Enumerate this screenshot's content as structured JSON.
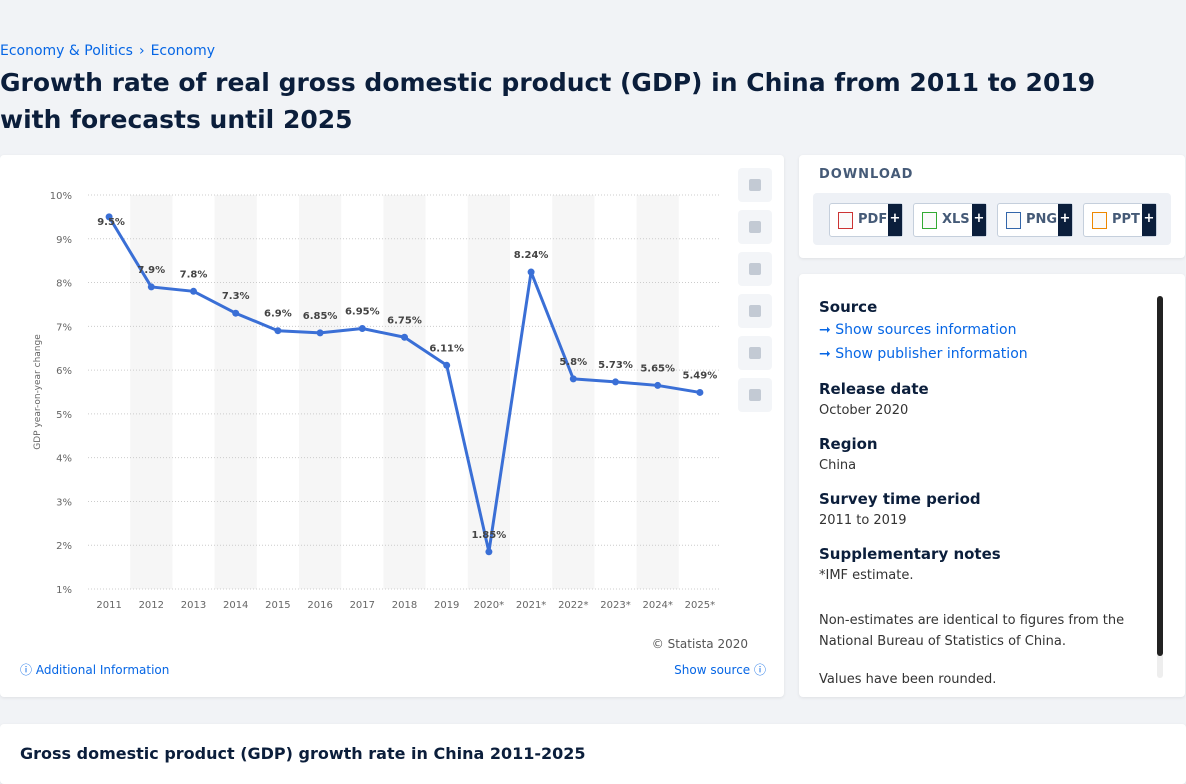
{
  "breadcrumbs": [
    "Economy & Politics",
    "Economy"
  ],
  "breadcrumbs_separator": "›",
  "page_title": "Growth rate of real gross domestic product (GDP) in China from 2011 to 2019 with forecasts until 2025",
  "chart_data": {
    "type": "line",
    "y_label": "GDP year-on-year change",
    "categories": [
      "2011",
      "2012",
      "2013",
      "2014",
      "2015",
      "2016",
      "2017",
      "2018",
      "2019",
      "2020*",
      "2021*",
      "2022*",
      "2023*",
      "2024*",
      "2025*"
    ],
    "values": [
      9.5,
      7.9,
      7.8,
      7.3,
      6.9,
      6.85,
      6.95,
      6.75,
      6.11,
      1.85,
      8.24,
      5.8,
      5.73,
      5.65,
      5.49
    ],
    "value_labels": [
      "9.5%",
      "7.9%",
      "7.8%",
      "7.3%",
      "6.9%",
      "6.85%",
      "6.95%",
      "6.75%",
      "6.11%",
      "1.85%",
      "8.24%",
      "5.8%",
      "5.73%",
      "5.65%",
      "5.49%"
    ],
    "color": "#3a6fd6",
    "ylim": [
      1,
      10
    ],
    "yticks": [
      {
        "value": 1,
        "label": "1%"
      },
      {
        "value": 2,
        "label": "2%"
      },
      {
        "value": 3,
        "label": "3%"
      },
      {
        "value": 4,
        "label": "4%"
      },
      {
        "value": 5,
        "label": "5%"
      },
      {
        "value": 6,
        "label": "6%"
      },
      {
        "value": 7,
        "label": "7%"
      },
      {
        "value": 8,
        "label": "8%"
      },
      {
        "value": 9,
        "label": "9%"
      },
      {
        "value": 10,
        "label": "10%"
      }
    ],
    "grid": true,
    "copyright": "© Statista 2020"
  },
  "additional_information": "Additional Information",
  "show_source": "Show source",
  "download": {
    "heading": "DOWNLOAD",
    "formats": [
      "PDF",
      "XLS",
      "PNG",
      "PPT"
    ],
    "expand": "+"
  },
  "details": {
    "source_heading": "Source",
    "show_sources": "Show sources information",
    "show_publisher": "Show publisher information",
    "release_date_heading": "Release date",
    "release_date": "October 2020",
    "region_heading": "Region",
    "region": "China",
    "survey_period_heading": "Survey time period",
    "survey_period": "2011 to 2019",
    "notes_heading": "Supplementary notes",
    "notes": [
      "*IMF estimate.",
      "Non-estimates are identical to figures from the National Bureau of Statistics of China.",
      "Values have been rounded."
    ]
  },
  "related_title": "Gross domestic product (GDP) growth rate in China 2011-2025"
}
